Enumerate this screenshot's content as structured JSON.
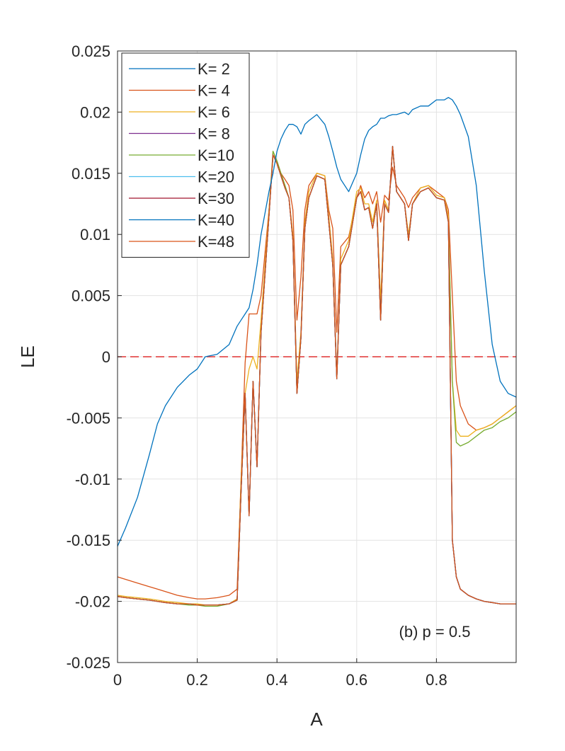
{
  "chart_data": {
    "type": "line",
    "xlabel": "A",
    "ylabel": "LE",
    "annotation": "(b) p = 0.5",
    "xlim": [
      0,
      1
    ],
    "ylim": [
      -0.025,
      0.025
    ],
    "x_ticks": [
      0,
      0.2,
      0.4,
      0.6,
      0.8
    ],
    "x_tick_labels": [
      "0",
      "0.2",
      "0.4",
      "0.6",
      "0.8"
    ],
    "y_ticks": [
      -0.025,
      -0.02,
      -0.015,
      -0.01,
      -0.005,
      0,
      0.005,
      0.01,
      0.015,
      0.02,
      0.025
    ],
    "y_tick_labels": [
      "-0.025",
      "-0.02",
      "-0.015",
      "-0.01",
      "-0.005",
      "0",
      "0.005",
      "0.01",
      "0.015",
      "0.02",
      "0.025"
    ],
    "grid": true,
    "legend_position": "top-left",
    "reference_line": {
      "y": 0,
      "color": "#e03030",
      "style": "dashed"
    },
    "x": [
      0,
      0.02,
      0.05,
      0.08,
      0.1,
      0.12,
      0.15,
      0.18,
      0.2,
      0.22,
      0.25,
      0.28,
      0.3,
      0.31,
      0.32,
      0.33,
      0.34,
      0.35,
      0.36,
      0.38,
      0.39,
      0.4,
      0.41,
      0.42,
      0.43,
      0.44,
      0.45,
      0.46,
      0.47,
      0.48,
      0.5,
      0.52,
      0.53,
      0.54,
      0.55,
      0.56,
      0.58,
      0.6,
      0.61,
      0.62,
      0.63,
      0.64,
      0.65,
      0.66,
      0.67,
      0.68,
      0.69,
      0.7,
      0.72,
      0.73,
      0.74,
      0.76,
      0.78,
      0.8,
      0.82,
      0.83,
      0.84,
      0.85,
      0.86,
      0.88,
      0.9,
      0.92,
      0.94,
      0.96,
      0.98,
      1.0
    ],
    "series": [
      {
        "name": "K= 2",
        "color": "#0072BD",
        "values": [
          -0.0155,
          -0.014,
          -0.0115,
          -0.008,
          -0.0055,
          -0.004,
          -0.0025,
          -0.0015,
          -0.001,
          0,
          0.0002,
          0.001,
          0.0025,
          0.003,
          0.0035,
          0.004,
          0.0055,
          0.0075,
          0.01,
          0.0135,
          0.015,
          0.0168,
          0.0178,
          0.0185,
          0.019,
          0.019,
          0.0188,
          0.0182,
          0.019,
          0.0193,
          0.0198,
          0.019,
          0.018,
          0.0168,
          0.0155,
          0.0145,
          0.0135,
          0.015,
          0.0165,
          0.0178,
          0.0185,
          0.0188,
          0.019,
          0.0195,
          0.0195,
          0.0197,
          0.0198,
          0.0198,
          0.02,
          0.0198,
          0.0202,
          0.0205,
          0.0205,
          0.021,
          0.021,
          0.0212,
          0.021,
          0.0205,
          0.0198,
          0.018,
          0.014,
          0.007,
          0.001,
          -0.002,
          -0.003,
          -0.0033
        ]
      },
      {
        "name": "K= 4",
        "color": "#D95319",
        "values": [
          -0.018,
          -0.0182,
          -0.0185,
          -0.0188,
          -0.019,
          -0.0192,
          -0.0195,
          -0.0197,
          -0.0198,
          -0.0198,
          -0.0197,
          -0.0195,
          -0.019,
          -0.01,
          -0.0005,
          0.0035,
          0.0035,
          0.0035,
          0.005,
          0.012,
          0.0165,
          0.016,
          0.015,
          0.0145,
          0.014,
          0.012,
          0.003,
          0.0065,
          0.012,
          0.014,
          0.015,
          0.0148,
          0.012,
          0.0105,
          0.002,
          0.009,
          0.0098,
          0.013,
          0.014,
          0.013,
          0.0135,
          0.0125,
          0.0135,
          0.011,
          0.0132,
          0.0128,
          0.0155,
          0.014,
          0.013,
          0.0122,
          0.013,
          0.0138,
          0.014,
          0.0135,
          0.013,
          0.012,
          0.005,
          -0.002,
          -0.004,
          -0.0055,
          -0.006,
          -0.0058,
          -0.0055,
          -0.005,
          -0.0045,
          -0.004
        ]
      },
      {
        "name": "K= 6",
        "color": "#EDB120",
        "values": [
          -0.0195,
          -0.0196,
          -0.0197,
          -0.0198,
          -0.0199,
          -0.02,
          -0.0201,
          -0.0202,
          -0.0202,
          -0.0203,
          -0.0203,
          -0.0202,
          -0.0198,
          -0.01,
          -0.003,
          -0.001,
          0.0,
          -0.001,
          0.003,
          0.012,
          0.0168,
          0.016,
          0.015,
          0.014,
          0.013,
          0.01,
          -0.002,
          0.002,
          0.011,
          0.0135,
          0.015,
          0.0148,
          0.0115,
          0.008,
          -0.0015,
          0.008,
          0.0095,
          0.0135,
          0.0138,
          0.0125,
          0.0125,
          0.011,
          0.0128,
          0.0045,
          0.0128,
          0.012,
          0.017,
          0.0135,
          0.0125,
          0.01,
          0.0125,
          0.0138,
          0.014,
          0.0132,
          0.013,
          0.0115,
          -0.002,
          -0.006,
          -0.0065,
          -0.0065,
          -0.006,
          -0.0058,
          -0.0055,
          -0.005,
          -0.0045,
          -0.004
        ]
      },
      {
        "name": "K= 8",
        "color": "#7E2F8E",
        "values": [
          -0.0196,
          -0.0197,
          -0.0198,
          -0.0199,
          -0.02,
          -0.0201,
          -0.0202,
          -0.0202,
          -0.0203,
          -0.0203,
          -0.0203,
          -0.0202,
          -0.0199,
          -0.011,
          -0.003,
          -0.013,
          -0.002,
          -0.009,
          0.002,
          0.0115,
          0.0165,
          0.0158,
          0.0148,
          0.0138,
          0.013,
          0.0095,
          -0.003,
          0.0015,
          0.0105,
          0.013,
          0.0148,
          0.0145,
          0.011,
          0.0075,
          -0.0018,
          0.0075,
          0.009,
          0.013,
          0.0135,
          0.012,
          0.0122,
          0.0105,
          0.0125,
          0.003,
          0.0125,
          0.0118,
          0.0172,
          0.0135,
          0.0125,
          0.0095,
          0.0125,
          0.0135,
          0.0138,
          0.013,
          0.0128,
          0.011,
          -0.015,
          -0.018,
          -0.019,
          -0.0195,
          -0.0198,
          -0.02,
          -0.0201,
          -0.0202,
          -0.0202,
          -0.0202
        ]
      },
      {
        "name": "K=10",
        "color": "#77AC30",
        "values": [
          -0.0196,
          -0.0197,
          -0.0198,
          -0.0199,
          -0.02,
          -0.0201,
          -0.0202,
          -0.0203,
          -0.0203,
          -0.0204,
          -0.0204,
          -0.0202,
          -0.0199,
          -0.011,
          -0.003,
          -0.013,
          -0.002,
          -0.009,
          0.002,
          0.0115,
          0.0168,
          0.016,
          0.015,
          0.014,
          0.013,
          0.0095,
          -0.003,
          0.0015,
          0.0105,
          0.013,
          0.0148,
          0.0145,
          0.011,
          0.0075,
          -0.0018,
          0.0075,
          0.009,
          0.013,
          0.0135,
          0.012,
          0.0122,
          0.0105,
          0.0125,
          0.003,
          0.0125,
          0.0118,
          0.0172,
          0.0135,
          0.0125,
          0.0095,
          0.0125,
          0.0135,
          0.0138,
          0.013,
          0.0128,
          0.011,
          -0.002,
          -0.007,
          -0.0073,
          -0.007,
          -0.0065,
          -0.006,
          -0.0058,
          -0.0053,
          -0.005,
          -0.0045
        ]
      },
      {
        "name": "K=20",
        "color": "#4DBEEE",
        "values": [
          -0.0196,
          -0.0197,
          -0.0198,
          -0.0199,
          -0.02,
          -0.0201,
          -0.0202,
          -0.0202,
          -0.0203,
          -0.0203,
          -0.0203,
          -0.0202,
          -0.0199,
          -0.011,
          -0.003,
          -0.013,
          -0.002,
          -0.009,
          0.002,
          0.0115,
          0.0165,
          0.0158,
          0.0148,
          0.0138,
          0.013,
          0.0095,
          -0.003,
          0.0015,
          0.0105,
          0.013,
          0.0148,
          0.0145,
          0.011,
          0.0075,
          -0.0018,
          0.0075,
          0.009,
          0.013,
          0.0135,
          0.012,
          0.0122,
          0.0105,
          0.0125,
          0.003,
          0.0125,
          0.0118,
          0.0172,
          0.0135,
          0.0125,
          0.0095,
          0.0125,
          0.0135,
          0.0138,
          0.013,
          0.0128,
          0.011,
          -0.015,
          -0.018,
          -0.019,
          -0.0195,
          -0.0198,
          -0.02,
          -0.0201,
          -0.0202,
          -0.0202,
          -0.0202
        ]
      },
      {
        "name": "K=30",
        "color": "#A2142F",
        "values": [
          -0.0196,
          -0.0197,
          -0.0198,
          -0.0199,
          -0.02,
          -0.0201,
          -0.0202,
          -0.0202,
          -0.0203,
          -0.0203,
          -0.0203,
          -0.0202,
          -0.0199,
          -0.011,
          -0.003,
          -0.013,
          -0.002,
          -0.009,
          0.002,
          0.0115,
          0.0165,
          0.0158,
          0.0148,
          0.0138,
          0.013,
          0.0095,
          -0.003,
          0.0015,
          0.0105,
          0.013,
          0.0148,
          0.0145,
          0.011,
          0.0075,
          -0.0018,
          0.0075,
          0.009,
          0.013,
          0.0135,
          0.012,
          0.0122,
          0.0105,
          0.0125,
          0.003,
          0.0125,
          0.0118,
          0.0172,
          0.0135,
          0.0125,
          0.0095,
          0.0125,
          0.0135,
          0.0138,
          0.013,
          0.0128,
          0.011,
          -0.015,
          -0.018,
          -0.019,
          -0.0195,
          -0.0198,
          -0.02,
          -0.0201,
          -0.0202,
          -0.0202,
          -0.0202
        ]
      },
      {
        "name": "K=40",
        "color": "#0072BD",
        "values": [
          -0.0196,
          -0.0197,
          -0.0198,
          -0.0199,
          -0.02,
          -0.0201,
          -0.0202,
          -0.0202,
          -0.0203,
          -0.0203,
          -0.0203,
          -0.0202,
          -0.0199,
          -0.011,
          -0.003,
          -0.013,
          -0.002,
          -0.009,
          0.002,
          0.0115,
          0.0165,
          0.0158,
          0.0148,
          0.0138,
          0.013,
          0.0095,
          -0.003,
          0.0015,
          0.0105,
          0.013,
          0.0148,
          0.0145,
          0.011,
          0.0075,
          -0.0018,
          0.0075,
          0.009,
          0.013,
          0.0135,
          0.012,
          0.0122,
          0.0105,
          0.0125,
          0.003,
          0.0125,
          0.0118,
          0.0172,
          0.0135,
          0.0125,
          0.0095,
          0.0125,
          0.0135,
          0.0138,
          0.013,
          0.0128,
          0.011,
          -0.015,
          -0.018,
          -0.019,
          -0.0195,
          -0.0198,
          -0.02,
          -0.0201,
          -0.0202,
          -0.0202,
          -0.0202
        ]
      },
      {
        "name": "K=48",
        "color": "#D95319",
        "values": [
          -0.0196,
          -0.0197,
          -0.0198,
          -0.0199,
          -0.02,
          -0.0201,
          -0.0202,
          -0.0202,
          -0.0203,
          -0.0203,
          -0.0203,
          -0.0202,
          -0.0199,
          -0.011,
          -0.003,
          -0.013,
          -0.002,
          -0.009,
          0.002,
          0.0115,
          0.0165,
          0.0158,
          0.0148,
          0.0138,
          0.013,
          0.0095,
          -0.003,
          0.0015,
          0.0105,
          0.013,
          0.0148,
          0.0145,
          0.011,
          0.0075,
          -0.0018,
          0.0075,
          0.009,
          0.013,
          0.0135,
          0.012,
          0.0122,
          0.0105,
          0.0125,
          0.003,
          0.0125,
          0.0118,
          0.0172,
          0.0135,
          0.0125,
          0.0095,
          0.0125,
          0.0135,
          0.0138,
          0.013,
          0.0128,
          0.011,
          -0.015,
          -0.018,
          -0.019,
          -0.0195,
          -0.0198,
          -0.02,
          -0.0201,
          -0.0202,
          -0.0202,
          -0.0202
        ]
      }
    ]
  }
}
